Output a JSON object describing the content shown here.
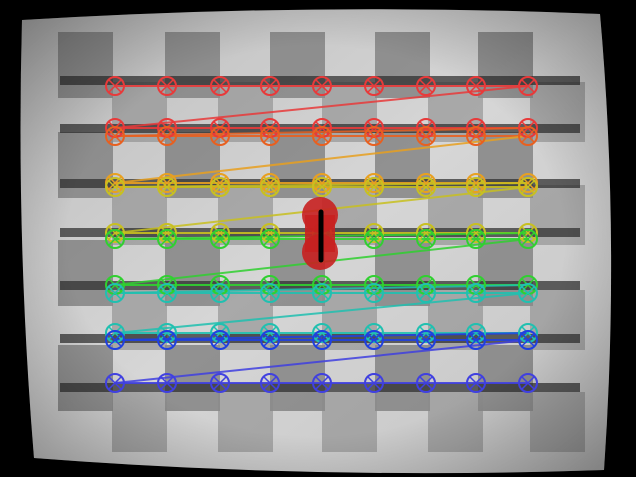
{
  "image": {
    "subject": "camera-calibration-checkerboard",
    "background_color": "#000000",
    "board_color": "#cfcfcf"
  },
  "detection": {
    "rows": 8,
    "cols": 9,
    "row_colors": [
      "#e83a3a",
      "#e86020",
      "#e8a020",
      "#c8c020",
      "#30d030",
      "#20c0b0",
      "#2040e0",
      "#4040e0"
    ],
    "marker_shape": "circle-with-cross"
  },
  "pointer": {
    "icon": "red-pin-marker",
    "color": "#c82020"
  }
}
